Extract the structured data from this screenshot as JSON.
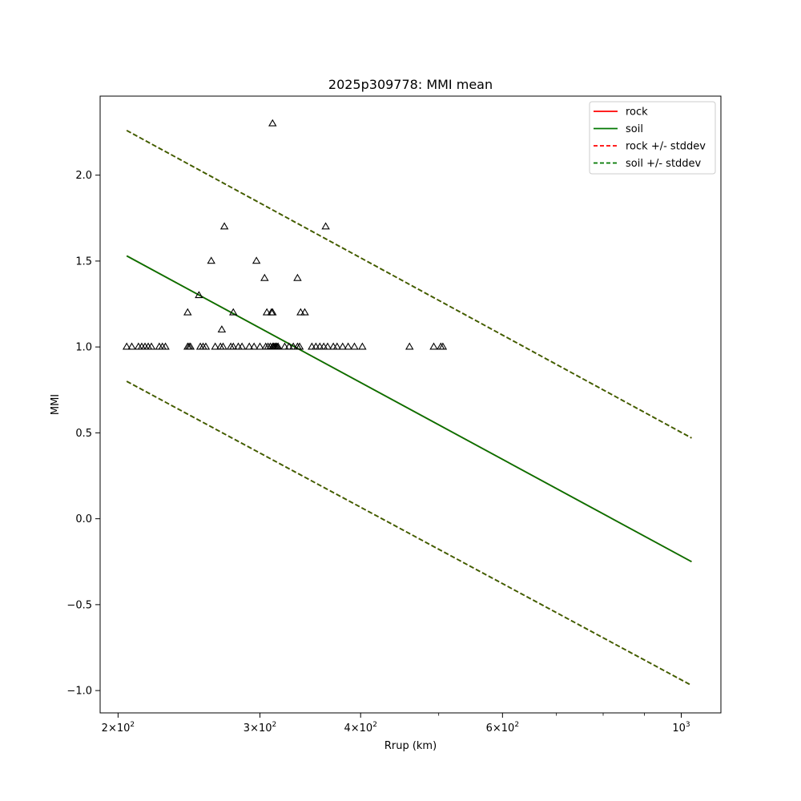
{
  "chart_data": {
    "type": "scatter",
    "title": "2025p309778: MMI mean",
    "xlabel": "Rrup (km)",
    "ylabel": "MMI",
    "xscale": "log",
    "xlim": [
      190,
      1120
    ],
    "ylim": [
      -1.13,
      2.46
    ],
    "grid": false,
    "legend_position": "top-right",
    "colors": {
      "rock": "#ff0000",
      "soil": "#007700",
      "soil_dashed": "#336600",
      "markers": "#000000"
    },
    "x_ticks": [
      {
        "value": 200,
        "base": "2",
        "exp": "2"
      },
      {
        "value": 300,
        "base": "3",
        "exp": "2"
      },
      {
        "value": 400,
        "base": "4",
        "exp": "2"
      },
      {
        "value": 600,
        "base": "6",
        "exp": "2"
      },
      {
        "value": 1000,
        "base": "10",
        "exp": "3"
      }
    ],
    "x_minor_ticks": [
      500,
      700,
      800,
      900
    ],
    "y_ticks": [
      {
        "value": -1.0,
        "label": "−1.0"
      },
      {
        "value": -0.5,
        "label": "−0.5"
      },
      {
        "value": 0.0,
        "label": "0.0"
      },
      {
        "value": 0.5,
        "label": "0.5"
      },
      {
        "value": 1.0,
        "label": "1.0"
      },
      {
        "value": 1.5,
        "label": "1.5"
      },
      {
        "value": 2.0,
        "label": "2.0"
      }
    ],
    "legend": [
      {
        "label": "rock",
        "color": "#ff0000",
        "dashed": false
      },
      {
        "label": "soil",
        "color": "#007700",
        "dashed": false
      },
      {
        "label": "rock +/- stddev",
        "color": "#ff0000",
        "dashed": true
      },
      {
        "label": "soil +/- stddev",
        "color": "#007700",
        "dashed": true
      }
    ],
    "series": [
      {
        "name": "rock",
        "style": "solid",
        "x": [
          205,
          1030
        ],
        "y": [
          1.53,
          -0.25
        ]
      },
      {
        "name": "soil",
        "style": "solid",
        "x": [
          205,
          1030
        ],
        "y": [
          1.53,
          -0.25
        ]
      },
      {
        "name": "rock +/- stddev",
        "style": "dashed",
        "upper": {
          "x": [
            205,
            1030
          ],
          "y": [
            2.26,
            0.47
          ]
        },
        "lower": {
          "x": [
            205,
            1030
          ],
          "y": [
            0.8,
            -0.97
          ]
        }
      },
      {
        "name": "soil +/- stddev",
        "style": "dashed",
        "upper": {
          "x": [
            205,
            1030
          ],
          "y": [
            2.26,
            0.47
          ]
        },
        "lower": {
          "x": [
            205,
            1030
          ],
          "y": [
            0.8,
            -0.97
          ]
        }
      }
    ],
    "observations": {
      "marker": "triangle",
      "points": [
        [
          205,
          1.0
        ],
        [
          208,
          1.0
        ],
        [
          212,
          1.0
        ],
        [
          214,
          1.0
        ],
        [
          216,
          1.0
        ],
        [
          218,
          1.0
        ],
        [
          220,
          1.0
        ],
        [
          225,
          1.0
        ],
        [
          227,
          1.0
        ],
        [
          229,
          1.0
        ],
        [
          244,
          1.0
        ],
        [
          245,
          1.0
        ],
        [
          246,
          1.0
        ],
        [
          244,
          1.2
        ],
        [
          253,
          1.0
        ],
        [
          255,
          1.0
        ],
        [
          257,
          1.0
        ],
        [
          252,
          1.3
        ],
        [
          264,
          1.0
        ],
        [
          268,
          1.0
        ],
        [
          270,
          1.0
        ],
        [
          269,
          1.1
        ],
        [
          261,
          1.5
        ],
        [
          271,
          1.7
        ],
        [
          276,
          1.0
        ],
        [
          278,
          1.0
        ],
        [
          282,
          1.0
        ],
        [
          285,
          1.0
        ],
        [
          291,
          1.0
        ],
        [
          295,
          1.0
        ],
        [
          278,
          1.2
        ],
        [
          300,
          1.0
        ],
        [
          305,
          1.0
        ],
        [
          307,
          1.0
        ],
        [
          309,
          1.0
        ],
        [
          311,
          1.0
        ],
        [
          312,
          1.0
        ],
        [
          313,
          1.0
        ],
        [
          314,
          1.0
        ],
        [
          315,
          1.0
        ],
        [
          316,
          1.0
        ],
        [
          297,
          1.5
        ],
        [
          304,
          1.4
        ],
        [
          306,
          1.2
        ],
        [
          310,
          1.2
        ],
        [
          311,
          1.2
        ],
        [
          311,
          2.3
        ],
        [
          322,
          1.0
        ],
        [
          326,
          1.0
        ],
        [
          330,
          1.0
        ],
        [
          334,
          1.0
        ],
        [
          336,
          1.0
        ],
        [
          334,
          1.4
        ],
        [
          337,
          1.2
        ],
        [
          341,
          1.2
        ],
        [
          348,
          1.0
        ],
        [
          352,
          1.0
        ],
        [
          356,
          1.0
        ],
        [
          360,
          1.0
        ],
        [
          364,
          1.0
        ],
        [
          370,
          1.0
        ],
        [
          374,
          1.0
        ],
        [
          380,
          1.0
        ],
        [
          386,
          1.0
        ],
        [
          393,
          1.0
        ],
        [
          402,
          1.0
        ],
        [
          362,
          1.7
        ],
        [
          460,
          1.0
        ],
        [
          493,
          1.0
        ],
        [
          503,
          1.0
        ],
        [
          506,
          1.0
        ]
      ]
    }
  }
}
